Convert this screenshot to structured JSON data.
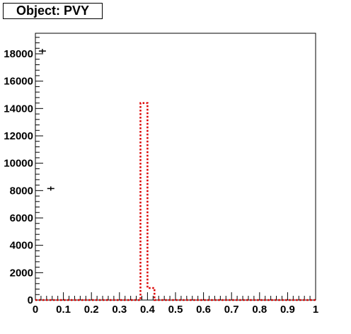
{
  "chart_data": {
    "type": "histogram",
    "title": "Object: PVY",
    "xlabel": "",
    "ylabel": "",
    "xlim": [
      0,
      1
    ],
    "ylim": [
      0,
      19500
    ],
    "x_ticks": [
      "0",
      "0.1",
      "0.2",
      "0.3",
      "0.4",
      "0.5",
      "0.6",
      "0.7",
      "0.8",
      "0.9",
      "1"
    ],
    "y_ticks": [
      "0",
      "2000",
      "4000",
      "6000",
      "8000",
      "10000",
      "12000",
      "14000",
      "16000",
      "18000"
    ],
    "grid": false,
    "legend": "none",
    "series": [
      {
        "style": "points",
        "color": "#000000",
        "points": [
          {
            "x": 0.025,
            "y": 18200
          },
          {
            "x": 0.055,
            "y": 8150
          }
        ]
      },
      {
        "style": "dotted-step",
        "color": "#dd0000",
        "bin_width": 0.025,
        "bins": [
          {
            "x0": 0.375,
            "x1": 0.4,
            "y": 14400
          },
          {
            "x0": 0.4,
            "x1": 0.425,
            "y": 880
          }
        ]
      }
    ]
  }
}
